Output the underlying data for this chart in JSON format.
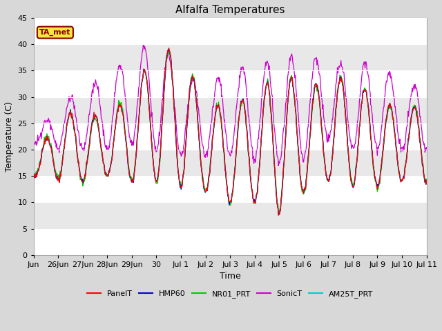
{
  "title": "Alfalfa Temperatures",
  "ylabel": "Temperature (C)",
  "xlabel": "Time",
  "annotation": "TA_met",
  "ylim": [
    0,
    45
  ],
  "yticks": [
    0,
    5,
    10,
    15,
    20,
    25,
    30,
    35,
    40,
    45
  ],
  "bg_color": "#d8d8d8",
  "plot_bg_inner": "#e8e8e8",
  "series_colors": {
    "PanelT": "#ff0000",
    "HMP60": "#0000cc",
    "NR01_PRT": "#00cc00",
    "SonicT": "#cc00cc",
    "AM25T_PRT": "#00cccc"
  },
  "legend_order": [
    "PanelT",
    "HMP60",
    "NR01_PRT",
    "SonicT",
    "AM25T_PRT"
  ],
  "xtick_positions": [
    0,
    1,
    2,
    3,
    4,
    5,
    6,
    7,
    8,
    9,
    10,
    11,
    12,
    13,
    14,
    15,
    16
  ],
  "xtick_labels": [
    "Jun",
    "26Jun",
    "27Jun",
    "28Jun",
    "29Jun",
    "30",
    "Jul 1",
    "Jul 2",
    "Jul 3",
    "Jul 4",
    "Jul 5",
    "Jul 6",
    "Jul 7",
    "Jul 8",
    "Jul 9",
    "Jul 10",
    "Jul 11"
  ]
}
